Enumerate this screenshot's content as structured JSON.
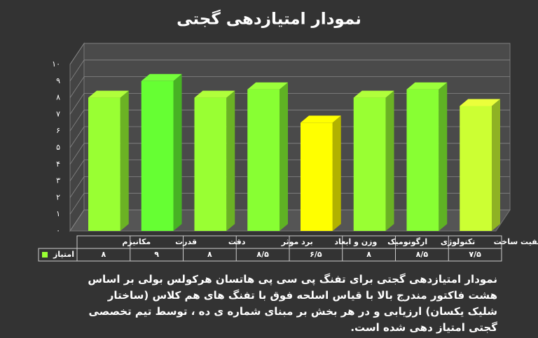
{
  "chart_data": {
    "type": "bar3d",
    "title": "نمودار امتیازدهی گجتی",
    "categories": [
      "مکانیزم",
      "قدرت",
      "دقت",
      "برد موثر",
      "وزن و ابعاد",
      "ارگونومیک",
      "تکنولوژی",
      "کیفیت ساخت"
    ],
    "series": [
      {
        "name": "امتیاز",
        "color": "#99ff33",
        "colors": [
          "#99ff33",
          "#66ff33",
          "#99ff33",
          "#88ff33",
          "#ffff00",
          "#99ff33",
          "#88ff33",
          "#ccff33"
        ],
        "values": [
          8,
          9,
          8,
          8.5,
          6.5,
          8,
          8.5,
          7.5
        ],
        "value_labels": [
          "۸",
          "۹",
          "۸",
          "۸/۵",
          "۶/۵",
          "۸",
          "۸/۵",
          "۷/۵"
        ]
      }
    ],
    "ylim": [
      0,
      10
    ],
    "yticks": [
      {
        "value": 0,
        "label": "۰"
      },
      {
        "value": 1,
        "label": "۱"
      },
      {
        "value": 2,
        "label": "۲"
      },
      {
        "value": 3,
        "label": "۳"
      },
      {
        "value": 4,
        "label": "۴"
      },
      {
        "value": 5,
        "label": "۵"
      },
      {
        "value": 6,
        "label": "۶"
      },
      {
        "value": 7,
        "label": "۷"
      },
      {
        "value": 8,
        "label": "۸"
      },
      {
        "value": 9,
        "label": "۹"
      },
      {
        "value": 10,
        "label": "۱۰"
      }
    ],
    "grid": true,
    "caption": "نمودار امتیازدهی گجتی برای تفنگ پی سی پی هاتسان هرکولس بولی بر اساس هشت فاکتور مندرج بالا با قیاس اسلحه فوق با تفنگ های هم کلاس (ساختار شلیک یکسان) ارزیابی و در هر بخش بر مبنای شماره ی ده ، توسط تیم تخصصی گجتی امتیاز دهی شده است."
  }
}
